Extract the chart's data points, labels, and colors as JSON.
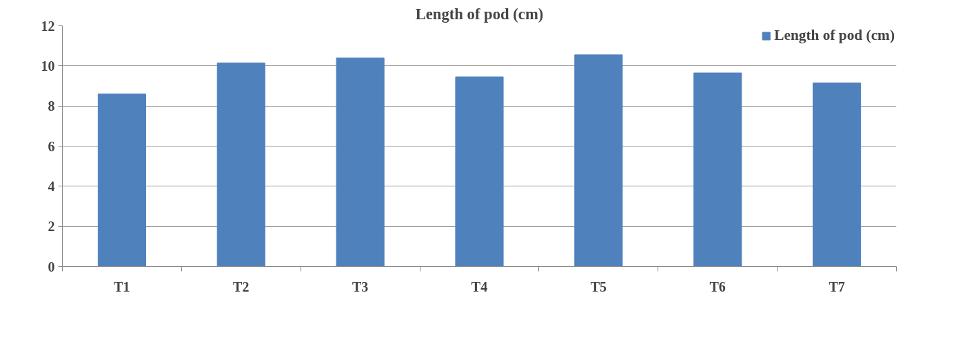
{
  "chart_data": {
    "type": "bar",
    "title": "Length of pod (cm)",
    "categories": [
      "T1",
      "T2",
      "T3",
      "T4",
      "T5",
      "T6",
      "T7"
    ],
    "series": [
      {
        "name": "Length of pod (cm)",
        "color": "#4f81bd",
        "values": [
          8.6,
          10.15,
          10.4,
          9.45,
          10.55,
          9.65,
          9.15
        ]
      }
    ],
    "ylim": [
      0,
      12
    ],
    "yticks": [
      0,
      2,
      4,
      6,
      8,
      10,
      12
    ],
    "grid": "y",
    "legend": "top right"
  }
}
